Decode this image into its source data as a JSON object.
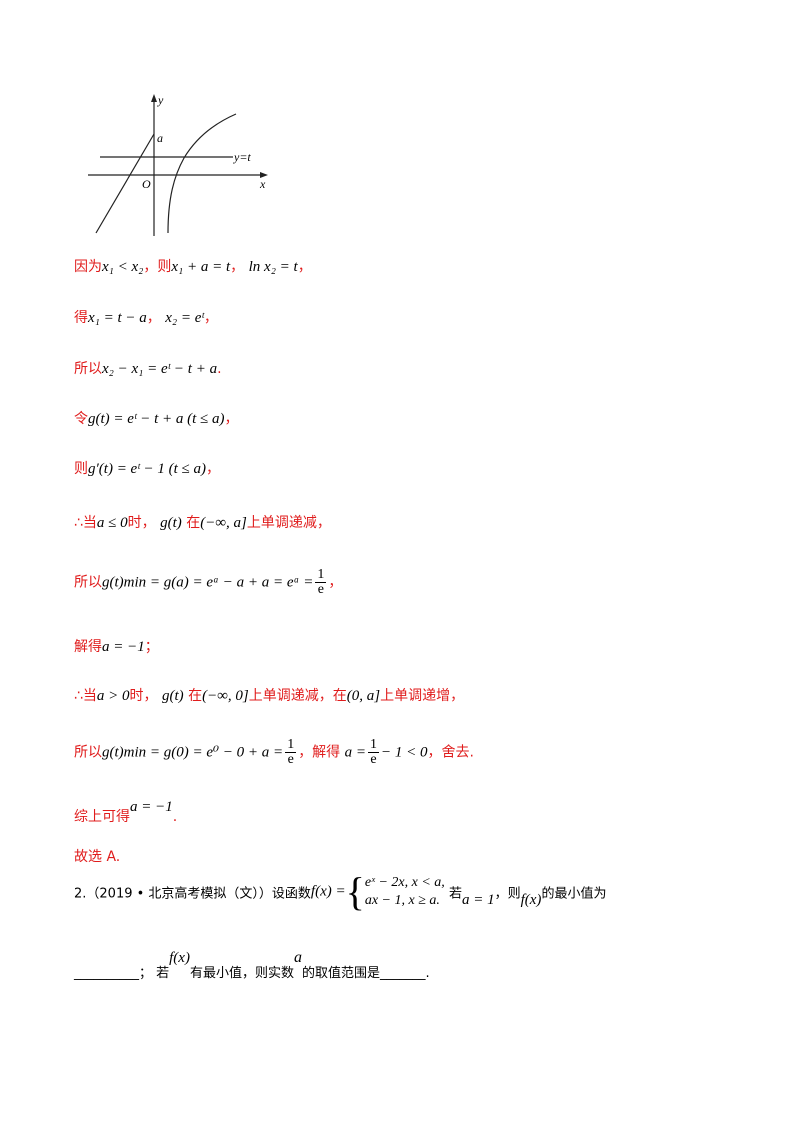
{
  "graph": {
    "y_label": "y",
    "x_label": "x",
    "origin_label": "O",
    "a_label": "a",
    "line_label": "y=t"
  },
  "lines": {
    "l1_pre": "因为",
    "l1_m1": "x₁ < x₂",
    "l1_mid": "，则",
    "l1_m2": "x₁ + a = t",
    "l1_m3": "ln x₂ = t",
    "l1_end": "，",
    "l2_pre": "得",
    "l2_m1": "x₁ = t − a",
    "l2_m2": "x₂ = eᵗ",
    "l2_end": "，",
    "l3_pre": "所以",
    "l3_m": "x₂ − x₁ = eᵗ − t + a",
    "l3_end": ".",
    "l4_pre": "令",
    "l4_m": "g(t) = eᵗ − t + a (t ≤ a)",
    "l4_end": "，",
    "l5_pre": "则",
    "l5_m": "g′(t) = eᵗ − 1 (t ≤ a)",
    "l5_end": "，",
    "l6_pre": "∴当",
    "l6_m1": "a ≤ 0",
    "l6_mid": "时，",
    "l6_m2": "g(t)",
    "l6_mid2": "在",
    "l6_m3": "(−∞, a]",
    "l6_end": "上单调递减，",
    "l7_pre": "所以",
    "l7_m": "g(t)min = g(a) = eᵃ − a + a = eᵃ =",
    "l7_num": "1",
    "l7_den": "e",
    "l7_end": "，",
    "l8_pre": "解得",
    "l8_m": "a = −1",
    "l8_end": "；",
    "l9_pre": "∴当",
    "l9_m1": "a > 0",
    "l9_mid": "时，",
    "l9_m2": "g(t)",
    "l9_mid2": "在",
    "l9_m3": "(−∞, 0]",
    "l9_mid3": "上单调递减，在",
    "l9_m4": "(0, a]",
    "l9_end": "上单调递增，",
    "l10_pre": "所以",
    "l10_m": "g(t)min = g(0) = e⁰ − 0 + a =",
    "l10_num": "1",
    "l10_den": "e",
    "l10_mid": "，解得",
    "l10_m2": "a =",
    "l10_num2": "1",
    "l10_den2": "e",
    "l10_m3": "− 1 < 0",
    "l10_end": "，舍去.",
    "l11_pre": "综上可得",
    "l11_m": "a = −1",
    "l11_end": ".",
    "l12": "故选 A."
  },
  "problem": {
    "intro": "2.（2019 • 北京高考模拟（文））设函数",
    "fx": "f(x) =",
    "case1": "eˣ − 2x,    x < a,",
    "case2": "ax − 1,      x ≥ a.",
    "cond_pre": "若",
    "cond_m": "a = 1",
    "cond_mid": "，则",
    "cond_fx": "f(x)",
    "cond_end": "的最小值为",
    "q2_blank": "__________",
    "q2_pre": "；  若",
    "q2_fx": "f(x)",
    "q2_mid": "有最小值，则实数",
    "q2_a": "a",
    "q2_end": "的取值范围是",
    "q2_blank2": "_______",
    "q2_final": "."
  }
}
